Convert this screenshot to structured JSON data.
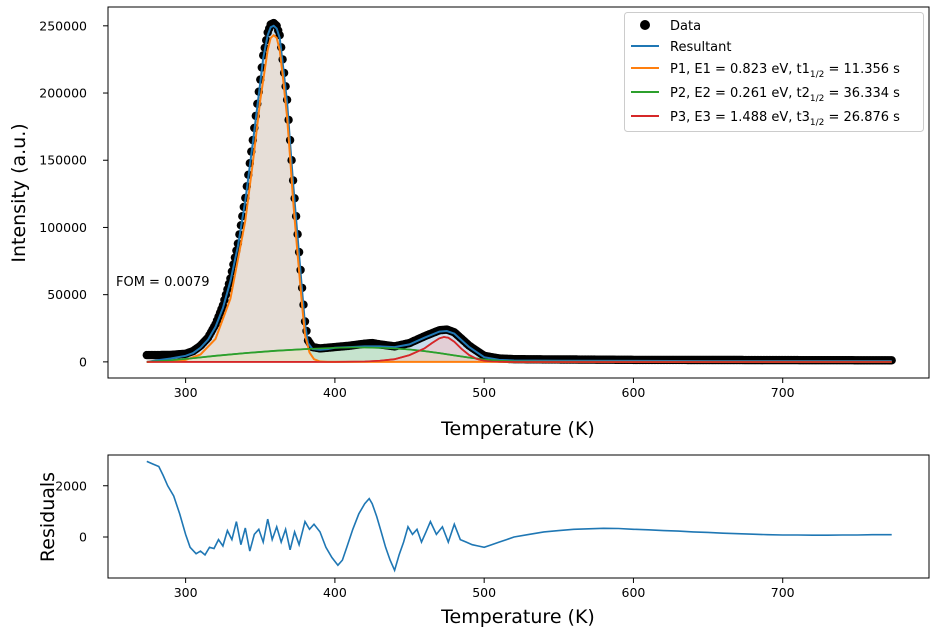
{
  "chart_data": [
    {
      "type": "line",
      "xlabel": "Temperature (K)",
      "ylabel": "Intensity  (a.u.)",
      "xlim": [
        248,
        798
      ],
      "ylim": [
        -12000,
        264000
      ],
      "xticks": [
        300,
        400,
        500,
        600,
        700
      ],
      "yticks": [
        0,
        50000,
        100000,
        150000,
        200000,
        250000
      ],
      "annotation": "FOM = 0.0079",
      "legend_position": "top-right",
      "grid": false,
      "legend": {
        "data": "Data",
        "resultant": "Resultant",
        "p1_pre": "P1, E1 = 0.823 eV, t1",
        "p1_post": " = 11.356 s",
        "p2_pre": "P2, E2 = 0.261 eV, t2",
        "p2_post": " = 36.334 s",
        "p3_pre": "P3, E3 = 1.488 eV, t3",
        "p3_post": " = 26.876 s",
        "half_sub": "1/2"
      },
      "colors": {
        "data": "#000000",
        "resultant": "#1f77b4",
        "p1": "#ff7f0e",
        "p2": "#2ca02c",
        "p3": "#d62728",
        "fill_resultant": "#c6dbec",
        "fill_p1": "#fedec5",
        "fill_p2": "#c5e5c5",
        "fill_p3": "#f3c6c6"
      },
      "series": [
        {
          "name": "Data",
          "x": [
            274,
            280,
            290,
            300,
            305,
            310,
            315,
            320,
            325,
            330,
            335,
            340,
            345,
            350,
            352,
            355,
            357,
            359,
            361,
            363,
            365,
            368,
            370,
            372,
            375,
            378,
            380,
            382,
            385,
            390,
            395,
            400,
            410,
            420,
            425,
            430,
            440,
            450,
            460,
            470,
            475,
            480,
            490,
            500,
            510,
            520,
            550,
            600,
            650,
            700,
            750,
            773
          ],
          "y": [
            5000,
            5000,
            5200,
            6000,
            8000,
            12000,
            18000,
            28000,
            42000,
            62000,
            88000,
            122000,
            165000,
            210000,
            228000,
            245000,
            251000,
            252000,
            250000,
            243000,
            225000,
            195000,
            165000,
            135000,
            95000,
            55000,
            30000,
            16000,
            11000,
            10000,
            10500,
            11000,
            12000,
            13500,
            14000,
            13000,
            11500,
            14000,
            19000,
            23500,
            24000,
            22000,
            12000,
            4500,
            2500,
            2000,
            1800,
            1500,
            1400,
            1300,
            1200,
            1200
          ]
        },
        {
          "name": "Resultant",
          "x": [
            274,
            280,
            290,
            300,
            305,
            310,
            315,
            320,
            325,
            330,
            335,
            340,
            345,
            350,
            352,
            355,
            357,
            359,
            361,
            363,
            365,
            368,
            370,
            372,
            375,
            378,
            380,
            382,
            385,
            390,
            395,
            400,
            410,
            420,
            425,
            430,
            440,
            450,
            460,
            470,
            475,
            480,
            490,
            500,
            510,
            520,
            550,
            600,
            650,
            700,
            750,
            773
          ],
          "y": [
            0,
            1000,
            2500,
            4500,
            6500,
            10500,
            16500,
            26000,
            40000,
            60000,
            86000,
            120000,
            163000,
            208000,
            226000,
            243000,
            249000,
            250000,
            248000,
            241000,
            223000,
            193000,
            163000,
            133000,
            93000,
            53000,
            28000,
            14000,
            9500,
            9000,
            9500,
            10500,
            11000,
            11500,
            11500,
            11500,
            11000,
            13000,
            18000,
            22500,
            23000,
            21000,
            11000,
            3500,
            1500,
            1000,
            800,
            700,
            600,
            600,
            600,
            600
          ]
        },
        {
          "name": "P1, E1 = 0.823 eV, t1 1/2 = 11.356 s",
          "x": [
            274,
            290,
            300,
            310,
            320,
            330,
            340,
            345,
            350,
            355,
            357,
            359,
            361,
            363,
            365,
            368,
            370,
            372,
            375,
            378,
            380,
            383,
            386,
            390,
            395,
            400,
            773
          ],
          "y": [
            0,
            500,
            1500,
            5500,
            17000,
            47000,
            105000,
            148000,
            195000,
            232000,
            241000,
            243000,
            241000,
            232000,
            214000,
            182000,
            152000,
            120000,
            80000,
            42000,
            20000,
            7000,
            2000,
            300,
            0,
            0,
            0
          ]
        },
        {
          "name": "P2, E2 = 0.261 eV, t2 1/2 = 36.334 s",
          "x": [
            274,
            290,
            300,
            310,
            320,
            340,
            360,
            380,
            400,
            410,
            420,
            430,
            440,
            450,
            460,
            470,
            480,
            490,
            500,
            510,
            520,
            540,
            773
          ],
          "y": [
            0,
            1200,
            2200,
            3300,
            4500,
            6500,
            8200,
            9500,
            10500,
            10800,
            10800,
            10500,
            10000,
            9200,
            8000,
            6500,
            4800,
            3200,
            1800,
            900,
            400,
            100,
            0
          ]
        },
        {
          "name": "P3, E3 = 1.488 eV, t3 1/2 = 26.876 s",
          "x": [
            274,
            400,
            420,
            430,
            440,
            450,
            460,
            465,
            470,
            473,
            476,
            480,
            485,
            490,
            495,
            500,
            505,
            510,
            520,
            773
          ],
          "y": [
            0,
            0,
            200,
            800,
            2000,
            5000,
            10000,
            14000,
            17500,
            18500,
            18000,
            15000,
            9500,
            5000,
            2200,
            800,
            300,
            100,
            0,
            0
          ]
        }
      ]
    },
    {
      "type": "line",
      "xlabel": "Temperature (K)",
      "ylabel": "Residuals",
      "xlim": [
        248,
        798
      ],
      "ylim": [
        -1600,
        3200
      ],
      "xticks": [
        300,
        400,
        500,
        600,
        700
      ],
      "yticks": [
        0,
        2000
      ],
      "grid": false,
      "series": [
        {
          "name": "Residuals",
          "x": [
            274,
            278,
            282,
            285,
            288,
            292,
            296,
            300,
            303,
            307,
            310,
            313,
            316,
            319,
            322,
            325,
            328,
            331,
            334,
            337,
            340,
            343,
            346,
            349,
            352,
            355,
            358,
            361,
            364,
            367,
            370,
            373,
            376,
            380,
            383,
            386,
            390,
            394,
            398,
            402,
            405,
            408,
            412,
            416,
            420,
            423,
            425,
            428,
            431,
            434,
            437,
            440,
            443,
            446,
            449,
            452,
            455,
            458,
            461,
            464,
            468,
            472,
            476,
            480,
            484,
            488,
            492,
            496,
            500,
            505,
            510,
            515,
            520,
            530,
            540,
            550,
            560,
            570,
            580,
            590,
            600,
            610,
            620,
            630,
            640,
            650,
            660,
            670,
            680,
            690,
            700,
            710,
            720,
            730,
            740,
            750,
            760,
            773
          ],
          "y": [
            2950,
            2850,
            2750,
            2400,
            2000,
            1600,
            900,
            100,
            -400,
            -650,
            -550,
            -700,
            -400,
            -450,
            -100,
            -350,
            250,
            -100,
            600,
            -300,
            350,
            -550,
            100,
            300,
            -200,
            700,
            -100,
            400,
            -200,
            300,
            -500,
            200,
            -300,
            600,
            300,
            500,
            200,
            -400,
            -800,
            -1100,
            -900,
            -400,
            300,
            900,
            1300,
            1500,
            1300,
            800,
            200,
            -400,
            -900,
            -1300,
            -700,
            -200,
            400,
            100,
            300,
            -200,
            200,
            600,
            100,
            400,
            -200,
            500,
            -100,
            -200,
            -300,
            -350,
            -400,
            -300,
            -200,
            -100,
            0,
            100,
            200,
            250,
            300,
            320,
            340,
            330,
            300,
            280,
            250,
            230,
            200,
            180,
            150,
            130,
            110,
            90,
            80,
            80,
            70,
            70,
            80,
            80,
            90,
            90
          ]
        }
      ]
    }
  ]
}
